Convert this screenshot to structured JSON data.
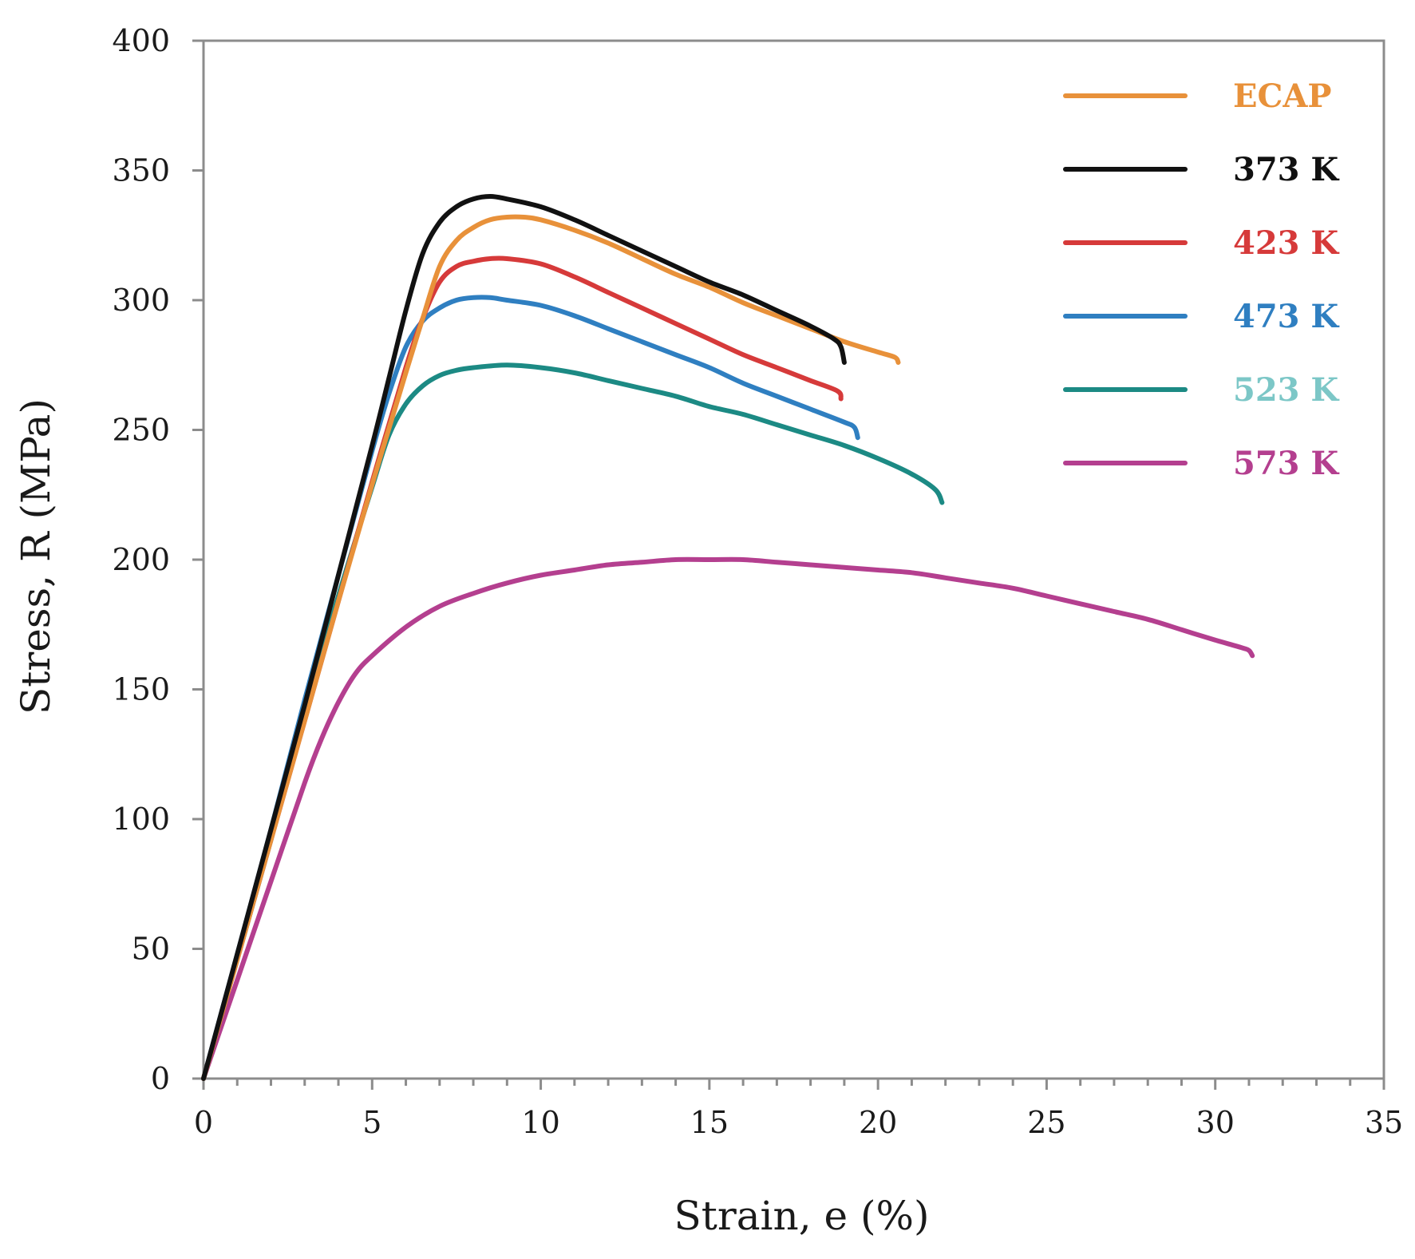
{
  "chart_data": {
    "type": "line",
    "title": "",
    "xlabel": "Strain, e (%)",
    "ylabel": "Stress, R (MPa)",
    "xlim": [
      0,
      35
    ],
    "ylim": [
      0,
      400
    ],
    "xticks": [
      0,
      5,
      10,
      15,
      20,
      25,
      30,
      35
    ],
    "yticks": [
      0,
      50,
      100,
      150,
      200,
      250,
      300,
      350,
      400
    ],
    "xtick_labels": [
      "0",
      "5",
      "10",
      "15",
      "20",
      "25",
      "30",
      "35"
    ],
    "ytick_labels": [
      "0",
      "50",
      "100",
      "150",
      "200",
      "250",
      "300",
      "350",
      "400"
    ],
    "x_minor_step": 1,
    "grid": false,
    "legend_position": "top-right",
    "series": [
      {
        "name": "ECAP",
        "color": "#e8913a",
        "label_color": "#e8913a",
        "x": [
          0,
          1,
          2,
          3,
          4,
          5,
          6,
          6.5,
          7,
          7.5,
          8,
          8.5,
          9,
          9.5,
          10,
          11,
          12,
          13,
          14,
          15,
          16,
          17,
          18,
          19,
          20,
          20.5,
          20.6
        ],
        "y": [
          0,
          46,
          92,
          138,
          184,
          229,
          272,
          293,
          313,
          323,
          328,
          331,
          332,
          332,
          331,
          327,
          322,
          316,
          310,
          305,
          299,
          294,
          289,
          284,
          280,
          278,
          276
        ]
      },
      {
        "name": "373 K",
        "color": "#111111",
        "label_color": "#111111",
        "x": [
          0,
          1,
          2,
          3,
          4,
          5,
          5.5,
          6,
          6.5,
          7,
          7.5,
          8,
          8.5,
          9,
          10,
          11,
          12,
          13,
          14,
          15,
          16,
          17,
          18,
          18.7,
          18.9,
          19.0
        ],
        "y": [
          0,
          48,
          96,
          144,
          194,
          244,
          270,
          296,
          318,
          330,
          336,
          339,
          340,
          339,
          336,
          331,
          325,
          319,
          313,
          307,
          302,
          296,
          290,
          285,
          282,
          276
        ]
      },
      {
        "name": "423 K",
        "color": "#d63a3a",
        "label_color": "#d63a3a",
        "x": [
          0,
          1,
          2,
          3,
          4,
          5,
          6,
          6.5,
          7,
          7.5,
          8,
          8.5,
          9,
          10,
          11,
          12,
          13,
          14,
          15,
          16,
          17,
          18,
          18.8,
          18.9
        ],
        "y": [
          0,
          46,
          92,
          138,
          184,
          230,
          274,
          293,
          307,
          313,
          315,
          316,
          316,
          314,
          309,
          303,
          297,
          291,
          285,
          279,
          274,
          269,
          265,
          262
        ]
      },
      {
        "name": "473 K",
        "color": "#2f7fc1",
        "label_color": "#2f7fc1",
        "x": [
          0,
          1,
          2,
          3,
          4,
          5,
          5.5,
          6,
          6.5,
          7,
          7.5,
          8,
          8.5,
          9,
          10,
          11,
          12,
          13,
          14,
          15,
          16,
          17,
          18,
          19,
          19.3,
          19.4
        ],
        "y": [
          0,
          48,
          96,
          146,
          194,
          242,
          264,
          282,
          292,
          297,
          300,
          301,
          301,
          300,
          298,
          294,
          289,
          284,
          279,
          274,
          268,
          263,
          258,
          253,
          251,
          247
        ]
      },
      {
        "name": "523 K",
        "color": "#1c8a84",
        "label_color": "#7cc7c7",
        "x": [
          0,
          1,
          2,
          3,
          4,
          5,
          5.5,
          6,
          6.5,
          7,
          7.5,
          8,
          9,
          10,
          11,
          12,
          13,
          14,
          15,
          16,
          17,
          18,
          19,
          20,
          21,
          21.7,
          21.9
        ],
        "y": [
          0,
          46,
          92,
          140,
          186,
          228,
          248,
          260,
          267,
          271,
          273,
          274,
          275,
          274,
          272,
          269,
          266,
          263,
          259,
          256,
          252,
          248,
          244,
          239,
          233,
          227,
          222
        ]
      },
      {
        "name": "573 K",
        "color": "#b43f8f",
        "label_color": "#b43f8f",
        "x": [
          0,
          1,
          2,
          3,
          3.5,
          4,
          4.5,
          5,
          6,
          7,
          8,
          9,
          10,
          11,
          12,
          13,
          14,
          15,
          16,
          17,
          18,
          19,
          20,
          21,
          22,
          23,
          24,
          25,
          26,
          27,
          28,
          29,
          30,
          30.8,
          31.0,
          31.1
        ],
        "y": [
          0,
          38,
          76,
          114,
          131,
          145,
          156,
          163,
          174,
          182,
          187,
          191,
          194,
          196,
          198,
          199,
          200,
          200,
          200,
          199,
          198,
          197,
          196,
          195,
          193,
          191,
          189,
          186,
          183,
          180,
          177,
          173,
          169,
          166,
          165,
          163
        ]
      }
    ]
  }
}
